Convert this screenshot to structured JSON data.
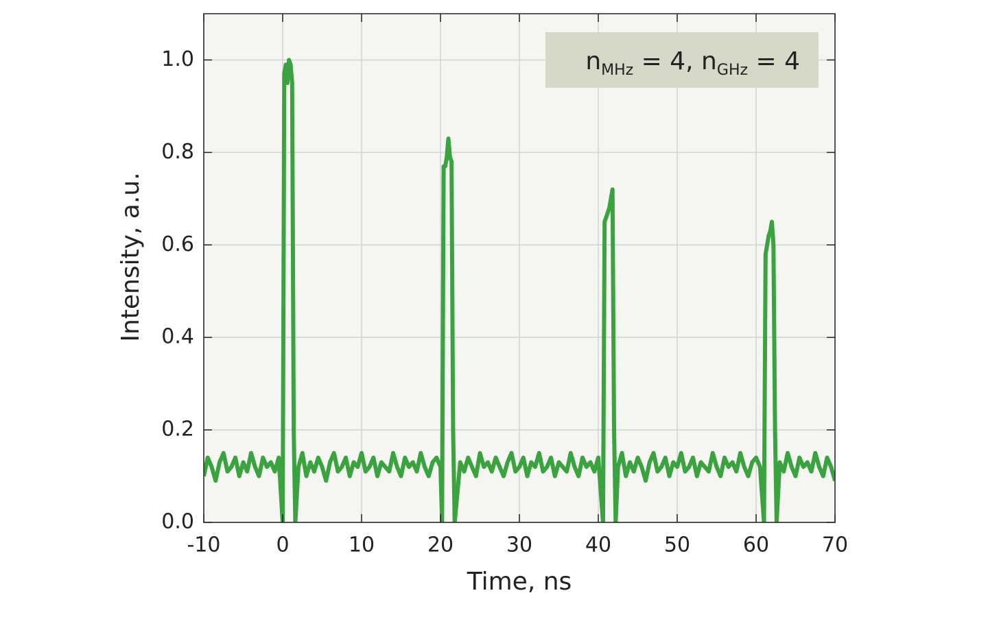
{
  "chart_data": {
    "type": "line",
    "xlabel": "Time, ns",
    "ylabel": "Intensity, a.u.",
    "annotation": [
      "n",
      "MHz",
      " = 4, n",
      "GHz",
      " = 4"
    ],
    "color": "#3aa33f",
    "xlim": [
      -10,
      70
    ],
    "ylim": [
      0,
      1.1
    ],
    "xticks": [
      -10,
      0,
      10,
      20,
      30,
      40,
      50,
      60,
      70
    ],
    "yticks": [
      {
        "value": 0,
        "label": "0.0"
      },
      0.2,
      0.4,
      0.6,
      0.8,
      {
        "value": 1,
        "label": "1.0"
      }
    ],
    "grid": true,
    "x": [
      -10,
      -9.5,
      -9,
      -8.5,
      -8,
      -7.5,
      -7,
      -6.5,
      -6,
      -5.5,
      -5,
      -4.5,
      -4,
      -3.5,
      -3,
      -2.5,
      -2,
      -1.5,
      -1,
      -0.5,
      0,
      0.2,
      0.4,
      0.6,
      0.8,
      1,
      1.2,
      1.4,
      1.6,
      2,
      2.5,
      3,
      3.5,
      4,
      4.5,
      5,
      5.5,
      6,
      6.5,
      7,
      7.5,
      8,
      8.5,
      9,
      9.5,
      10,
      10.5,
      11,
      11.5,
      12,
      12.5,
      13,
      13.5,
      14,
      14.5,
      15,
      15.5,
      16,
      16.5,
      17,
      17.5,
      18,
      18.5,
      19,
      19.5,
      20,
      20.2,
      20.4,
      20.6,
      20.8,
      21,
      21.2,
      21.4,
      21.6,
      21.8,
      22.5,
      23,
      23.5,
      24,
      24.5,
      25,
      25.5,
      26,
      26.5,
      27,
      27.5,
      28,
      28.5,
      29,
      29.5,
      30,
      30.5,
      31,
      31.5,
      32,
      32.5,
      33,
      33.5,
      34,
      34.5,
      35,
      35.5,
      36,
      36.5,
      37,
      37.5,
      38,
      38.5,
      39,
      39.5,
      40,
      40.6,
      40.8,
      41,
      41.2,
      41.4,
      41.6,
      41.8,
      42,
      42.2,
      42.5,
      43,
      43.5,
      44,
      44.5,
      45,
      45.5,
      46,
      46.5,
      47,
      47.5,
      48,
      48.5,
      49,
      49.5,
      50,
      50.5,
      51,
      51.5,
      52,
      52.5,
      53,
      53.5,
      54,
      54.5,
      55,
      55.5,
      56,
      56.5,
      57,
      57.5,
      58,
      58.5,
      59,
      59.5,
      60,
      60.5,
      61,
      61.2,
      61.4,
      61.6,
      61.8,
      62,
      62.2,
      62.4,
      62.6,
      63,
      63.5,
      64,
      64.5,
      65,
      65.5,
      66,
      66.5,
      67,
      67.5,
      68,
      68.5,
      69,
      69.5,
      70
    ],
    "values": [
      0.1,
      0.14,
      0.12,
      0.09,
      0.13,
      0.15,
      0.11,
      0.12,
      0.14,
      0.1,
      0.13,
      0.11,
      0.15,
      0.12,
      0.1,
      0.14,
      0.12,
      0.13,
      0.11,
      0.14,
      0,
      0.97,
      0.99,
      0.95,
      1.0,
      0.99,
      0.95,
      0.2,
      0,
      0.12,
      0.15,
      0.1,
      0.13,
      0.11,
      0.14,
      0.12,
      0.09,
      0.13,
      0.15,
      0.11,
      0.12,
      0.14,
      0.1,
      0.13,
      0.12,
      0.15,
      0.11,
      0.12,
      0.14,
      0.1,
      0.13,
      0.12,
      0.11,
      0.15,
      0.12,
      0.1,
      0.14,
      0.12,
      0.13,
      0.11,
      0.15,
      0.12,
      0.1,
      0.13,
      0.14,
      0.12,
      0,
      0.77,
      0.77,
      0.79,
      0.83,
      0.79,
      0.78,
      0.2,
      0,
      0.13,
      0.11,
      0.14,
      0.12,
      0.1,
      0.15,
      0.12,
      0.13,
      0.11,
      0.14,
      0.12,
      0.1,
      0.13,
      0.15,
      0.11,
      0.12,
      0.14,
      0.1,
      0.13,
      0.12,
      0.15,
      0.11,
      0.12,
      0.14,
      0.1,
      0.13,
      0.12,
      0.11,
      0.15,
      0.12,
      0.1,
      0.14,
      0.12,
      0.13,
      0.11,
      0.14,
      0,
      0.65,
      0.66,
      0.67,
      0.68,
      0.7,
      0.72,
      0.2,
      0,
      0.12,
      0.15,
      0.1,
      0.13,
      0.11,
      0.14,
      0.12,
      0.09,
      0.13,
      0.15,
      0.11,
      0.12,
      0.14,
      0.1,
      0.13,
      0.12,
      0.15,
      0.11,
      0.12,
      0.14,
      0.1,
      0.13,
      0.12,
      0.11,
      0.15,
      0.12,
      0.1,
      0.14,
      0.12,
      0.13,
      0.11,
      0.15,
      0.12,
      0.1,
      0.13,
      0.14,
      0.12,
      0,
      0.58,
      0.6,
      0.62,
      0.63,
      0.65,
      0.6,
      0.2,
      0,
      0.13,
      0.11,
      0.15,
      0.12,
      0.1,
      0.14,
      0.12,
      0.13,
      0.11,
      0.15,
      0.12,
      0.1,
      0.14,
      0.12,
      0.09
    ]
  }
}
